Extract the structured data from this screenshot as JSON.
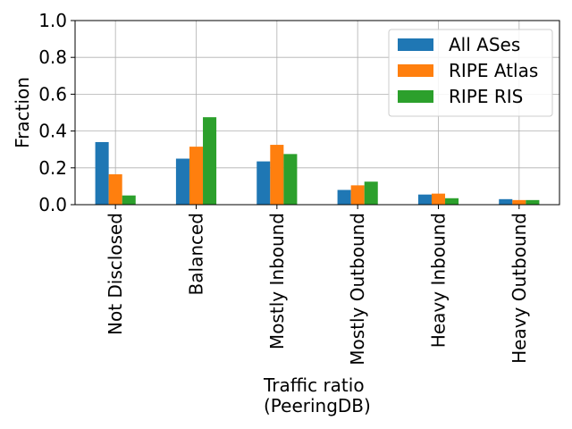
{
  "chart_data": {
    "type": "bar",
    "title": "",
    "xlabel_lines": [
      "Traffic ratio",
      "(PeeringDB)"
    ],
    "ylabel": "Fraction",
    "ylim": [
      0,
      1.0
    ],
    "yticks": [
      "0.0",
      "0.2",
      "0.4",
      "0.6",
      "0.8",
      "1.0"
    ],
    "grid": true,
    "legend_position": "upper-right",
    "categories": [
      "Not Disclosed",
      "Balanced",
      "Mostly Inbound",
      "Mostly Outbound",
      "Heavy Inbound",
      "Heavy Outbound"
    ],
    "series": [
      {
        "name": "All ASes",
        "color": "#1f77b4",
        "values": [
          0.34,
          0.25,
          0.235,
          0.08,
          0.055,
          0.03
        ]
      },
      {
        "name": "RIPE Atlas",
        "color": "#ff7f0e",
        "values": [
          0.165,
          0.315,
          0.325,
          0.105,
          0.06,
          0.025
        ]
      },
      {
        "name": "RIPE RIS",
        "color": "#2ca02c",
        "values": [
          0.05,
          0.475,
          0.275,
          0.125,
          0.035,
          0.025
        ]
      }
    ]
  }
}
